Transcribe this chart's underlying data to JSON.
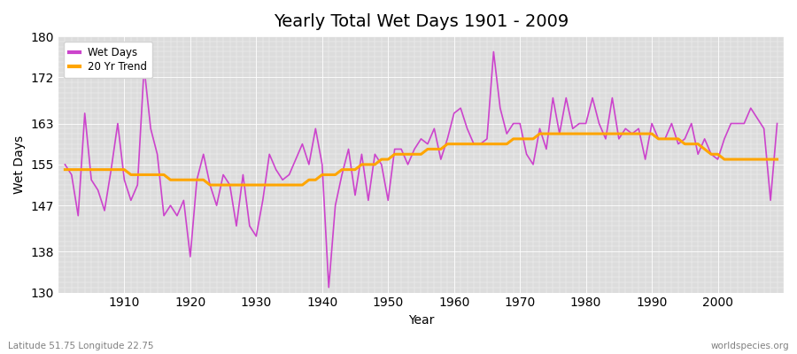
{
  "title": "Yearly Total Wet Days 1901 - 2009",
  "xlabel": "Year",
  "ylabel": "Wet Days",
  "bottom_left_label": "Latitude 51.75 Longitude 22.75",
  "bottom_right_label": "worldspecies.org",
  "legend_labels": [
    "Wet Days",
    "20 Yr Trend"
  ],
  "wet_days_color": "#CC44CC",
  "trend_color": "#FFA500",
  "background_color": "#DCDCDC",
  "ylim": [
    130,
    180
  ],
  "yticks": [
    130,
    138,
    147,
    155,
    163,
    172,
    180
  ],
  "years": [
    1901,
    1902,
    1903,
    1904,
    1905,
    1906,
    1907,
    1908,
    1909,
    1910,
    1911,
    1912,
    1913,
    1914,
    1915,
    1916,
    1917,
    1918,
    1919,
    1920,
    1921,
    1922,
    1923,
    1924,
    1925,
    1926,
    1927,
    1928,
    1929,
    1930,
    1931,
    1932,
    1933,
    1934,
    1935,
    1936,
    1937,
    1938,
    1939,
    1940,
    1941,
    1942,
    1943,
    1944,
    1945,
    1946,
    1947,
    1948,
    1949,
    1950,
    1951,
    1952,
    1953,
    1954,
    1955,
    1956,
    1957,
    1958,
    1959,
    1960,
    1961,
    1962,
    1963,
    1964,
    1965,
    1966,
    1967,
    1968,
    1969,
    1970,
    1971,
    1972,
    1973,
    1974,
    1975,
    1976,
    1977,
    1978,
    1979,
    1980,
    1981,
    1982,
    1983,
    1984,
    1985,
    1986,
    1987,
    1988,
    1989,
    1990,
    1991,
    1992,
    1993,
    1994,
    1995,
    1996,
    1997,
    1998,
    1999,
    2000,
    2001,
    2002,
    2003,
    2004,
    2005,
    2006,
    2007,
    2008,
    2009
  ],
  "wet_days": [
    155,
    153,
    145,
    165,
    152,
    150,
    146,
    154,
    163,
    152,
    148,
    151,
    174,
    162,
    157,
    145,
    147,
    145,
    148,
    137,
    152,
    157,
    151,
    147,
    153,
    151,
    143,
    153,
    143,
    141,
    148,
    157,
    154,
    152,
    153,
    156,
    159,
    155,
    162,
    155,
    131,
    147,
    153,
    158,
    149,
    157,
    148,
    157,
    155,
    148,
    158,
    158,
    155,
    158,
    160,
    159,
    162,
    156,
    160,
    165,
    166,
    162,
    159,
    159,
    160,
    177,
    166,
    161,
    163,
    163,
    157,
    155,
    162,
    158,
    168,
    161,
    168,
    162,
    163,
    163,
    168,
    163,
    160,
    168,
    160,
    162,
    161,
    162,
    156,
    163,
    160,
    160,
    163,
    159,
    160,
    163,
    157,
    160,
    157,
    156,
    160,
    163,
    163,
    163,
    166,
    164,
    162,
    148,
    163
  ],
  "trend": [
    154,
    154,
    154,
    154,
    154,
    154,
    154,
    154,
    154,
    154,
    153,
    153,
    153,
    153,
    153,
    153,
    152,
    152,
    152,
    152,
    152,
    152,
    151,
    151,
    151,
    151,
    151,
    151,
    151,
    151,
    151,
    151,
    151,
    151,
    151,
    151,
    151,
    152,
    152,
    153,
    153,
    153,
    154,
    154,
    154,
    155,
    155,
    155,
    156,
    156,
    157,
    157,
    157,
    157,
    157,
    158,
    158,
    158,
    159,
    159,
    159,
    159,
    159,
    159,
    159,
    159,
    159,
    159,
    160,
    160,
    160,
    160,
    161,
    161,
    161,
    161,
    161,
    161,
    161,
    161,
    161,
    161,
    161,
    161,
    161,
    161,
    161,
    161,
    161,
    161,
    160,
    160,
    160,
    160,
    159,
    159,
    159,
    158,
    157,
    157,
    156,
    156,
    156,
    156,
    156,
    156,
    156,
    156,
    156
  ]
}
